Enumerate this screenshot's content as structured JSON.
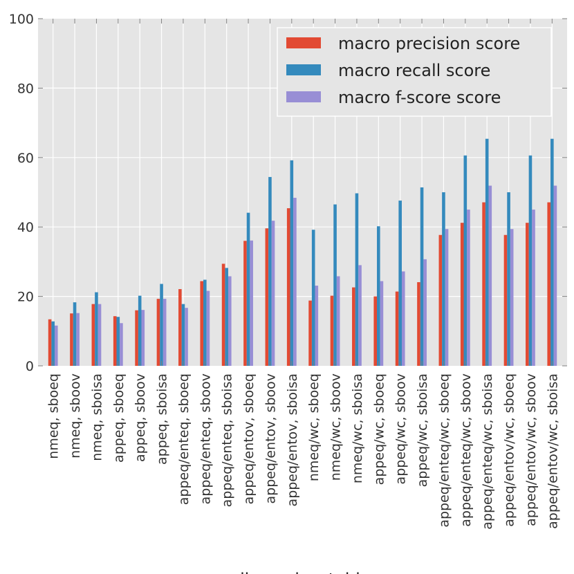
{
  "chart_data": {
    "type": "bar",
    "title": "",
    "xlabel": "dimension_table",
    "ylabel": "",
    "ylim": [
      0,
      100
    ],
    "yticks": [
      0,
      20,
      40,
      60,
      80,
      100
    ],
    "grid": true,
    "legend_position": "top-right",
    "categories": [
      "nmeq, sboeq",
      "nmeq, sboov",
      "nmeq, sboisa",
      "appeq, sboeq",
      "appeq, sboov",
      "appeq, sboisa",
      "appeq/enteq, sboeq",
      "appeq/enteq, sboov",
      "appeq/enteq, sboisa",
      "appeq/entov, sboeq",
      "appeq/entov, sboov",
      "appeq/entov, sboisa",
      "nmeq/wc, sboeq",
      "nmeq/wc, sboov",
      "nmeq/wc, sboisa",
      "appeq/wc, sboeq",
      "appeq/wc, sboov",
      "appeq/wc, sboisa",
      "appeq/enteq/wc, sboeq",
      "appeq/enteq/wc, sboov",
      "appeq/enteq/wc, sboisa",
      "appeq/entov/wc, sboeq",
      "appeq/entov/wc, sboov",
      "appeq/entov/wc, sboisa"
    ],
    "series": [
      {
        "name": "macro precision score",
        "color": "#e24a33",
        "values": [
          13.4,
          15.1,
          17.8,
          14.3,
          16.0,
          19.3,
          22.1,
          24.4,
          29.4,
          36.0,
          39.6,
          45.4,
          18.8,
          20.2,
          22.6,
          20.0,
          21.4,
          24.1,
          37.7,
          41.2,
          47.1,
          37.7,
          41.2,
          47.1
        ]
      },
      {
        "name": "macro recall score",
        "color": "#348abd",
        "values": [
          12.8,
          18.3,
          21.2,
          14.1,
          20.2,
          23.6,
          17.8,
          24.8,
          28.2,
          44.1,
          54.4,
          59.2,
          39.2,
          46.5,
          49.7,
          40.2,
          47.6,
          51.4,
          50.0,
          60.6,
          65.4,
          50.0,
          60.6,
          65.4
        ]
      },
      {
        "name": "macro f-score score",
        "color": "#988ed5",
        "values": [
          11.6,
          15.2,
          17.8,
          12.3,
          16.1,
          19.3,
          16.7,
          21.6,
          25.8,
          36.1,
          41.8,
          48.4,
          23.1,
          25.8,
          29.0,
          24.4,
          27.2,
          30.7,
          39.4,
          45.0,
          51.9,
          39.4,
          45.0,
          51.9
        ]
      }
    ]
  }
}
